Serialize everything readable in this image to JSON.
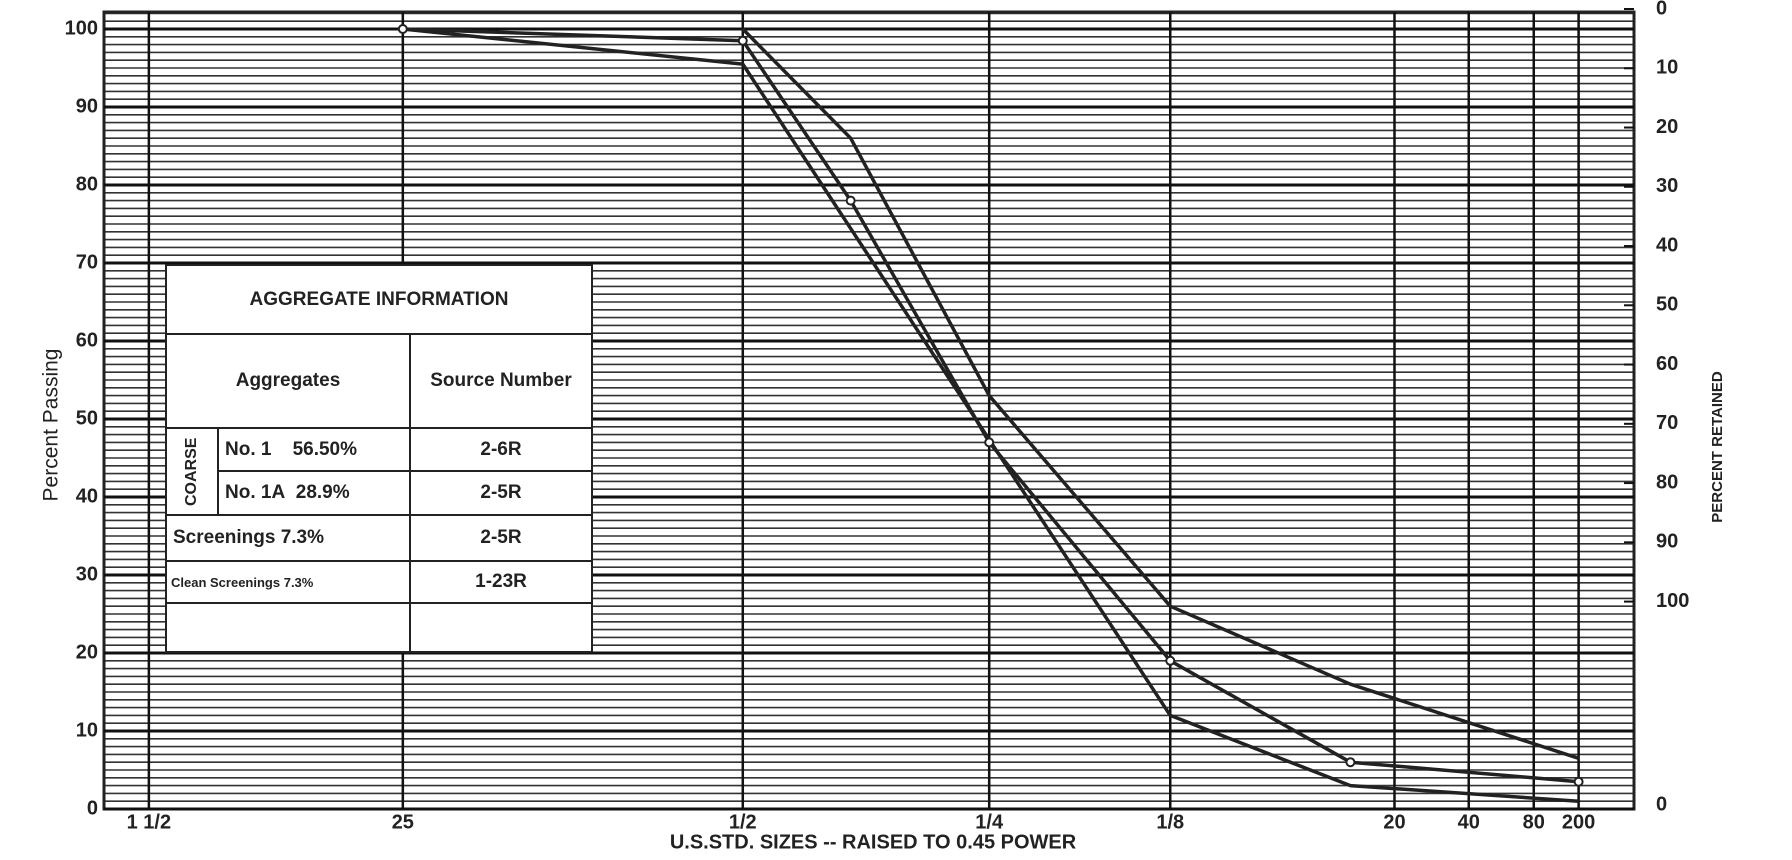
{
  "chart_data": {
    "type": "line",
    "ylabel": "Percent Passing",
    "y2label": "PERCENT RETAINED",
    "xlabel": "U.S.STD. SIZES -- RAISED TO 0.45 POWER",
    "xscale_power": 0.45,
    "xlim": [
      40,
      0.01
    ],
    "xticks": [
      {
        "value": 37.5,
        "label": "1 1/2"
      },
      25,
      {
        "value": 12.5,
        "label": "1/2"
      },
      {
        "value": 6.3,
        "label": "1/4"
      },
      {
        "value": 3.175,
        "label": "1/8"
      },
      {
        "value": 0.85,
        "label": "20"
      },
      {
        "value": 0.425,
        "label": "40"
      },
      {
        "value": 0.18,
        "label": "80"
      },
      {
        "value": 0.075,
        "label": "200"
      }
    ],
    "ylim": [
      0,
      100
    ],
    "yticks": [
      0,
      10,
      20,
      30,
      40,
      50,
      60,
      70,
      80,
      90,
      100
    ],
    "y2lim": [
      135,
      0
    ],
    "y2ticks": [
      0,
      10,
      20,
      30,
      40,
      50,
      60,
      70,
      80,
      90,
      100
    ],
    "y2_bottom_label": "0",
    "minor_ystep": 1,
    "grid": true,
    "series": [
      {
        "color": "#222222",
        "markers": false,
        "x": [
          25,
          12.5,
          3.175,
          1.18,
          0.075
        ],
        "values": [
          100,
          95.5,
          12,
          3,
          1
        ]
      },
      {
        "color": "#222222",
        "markers": true,
        "x": [
          25,
          12.5,
          9.5,
          6.3,
          3.175,
          1.18,
          0.075
        ],
        "values": [
          100,
          98.5,
          78,
          47,
          19,
          6,
          3.5
        ]
      },
      {
        "color": "#222222",
        "markers": false,
        "x": [
          12.5,
          9.5,
          6.3,
          3.175,
          1.18,
          0.075
        ],
        "values": [
          100,
          86,
          53,
          26,
          16,
          6.5
        ]
      }
    ]
  },
  "table": {
    "title": "AGGREGATE INFORMATION",
    "header": [
      "Aggregates",
      "Source Number"
    ],
    "group_label": "COARSE",
    "rows": [
      [
        "No. 1",
        "56.50%",
        "2-6R"
      ],
      [
        "No. 1A",
        "28.9%",
        "2-5R"
      ]
    ],
    "other_rows": [
      [
        "Screenings 7.3%",
        "2-5R"
      ],
      [
        "Clean Screenings 7.3%",
        "1-23R"
      ]
    ]
  }
}
